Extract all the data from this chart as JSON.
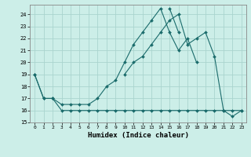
{
  "xlabel": "Humidex (Indice chaleur)",
  "bg_color": "#cceee8",
  "grid_color": "#aad4ce",
  "line_color": "#1a6b6b",
  "marker": "D",
  "marker_size": 2.0,
  "xlim": [
    -0.5,
    23.5
  ],
  "ylim": [
    15,
    24.8
  ],
  "yticks": [
    15,
    16,
    17,
    18,
    19,
    20,
    21,
    22,
    23,
    24
  ],
  "xticks": [
    0,
    1,
    2,
    3,
    4,
    5,
    6,
    7,
    8,
    9,
    10,
    11,
    12,
    13,
    14,
    15,
    16,
    17,
    18,
    19,
    20,
    21,
    22,
    23
  ],
  "series": [
    [
      19,
      17,
      17,
      16.5,
      16.5,
      16.5,
      16.5,
      17,
      18,
      18.5,
      20,
      21.5,
      22.5,
      23.5,
      24.5,
      22.5,
      21,
      22,
      20,
      null,
      null,
      null,
      null,
      null
    ],
    [
      19,
      17,
      17,
      16,
      16,
      16,
      16,
      16,
      16,
      16,
      16,
      16,
      16,
      16,
      16,
      16,
      16,
      16,
      16,
      16,
      16,
      16,
      16,
      16
    ],
    [
      null,
      null,
      null,
      null,
      null,
      null,
      null,
      null,
      null,
      null,
      19,
      20,
      20.5,
      21.5,
      22.5,
      23.5,
      24,
      21.5,
      22,
      22.5,
      20.5,
      16,
      15.5,
      16
    ],
    [
      null,
      null,
      null,
      null,
      null,
      null,
      null,
      null,
      null,
      null,
      null,
      null,
      null,
      null,
      null,
      24.5,
      22.5,
      null,
      null,
      null,
      null,
      null,
      null,
      null
    ]
  ]
}
